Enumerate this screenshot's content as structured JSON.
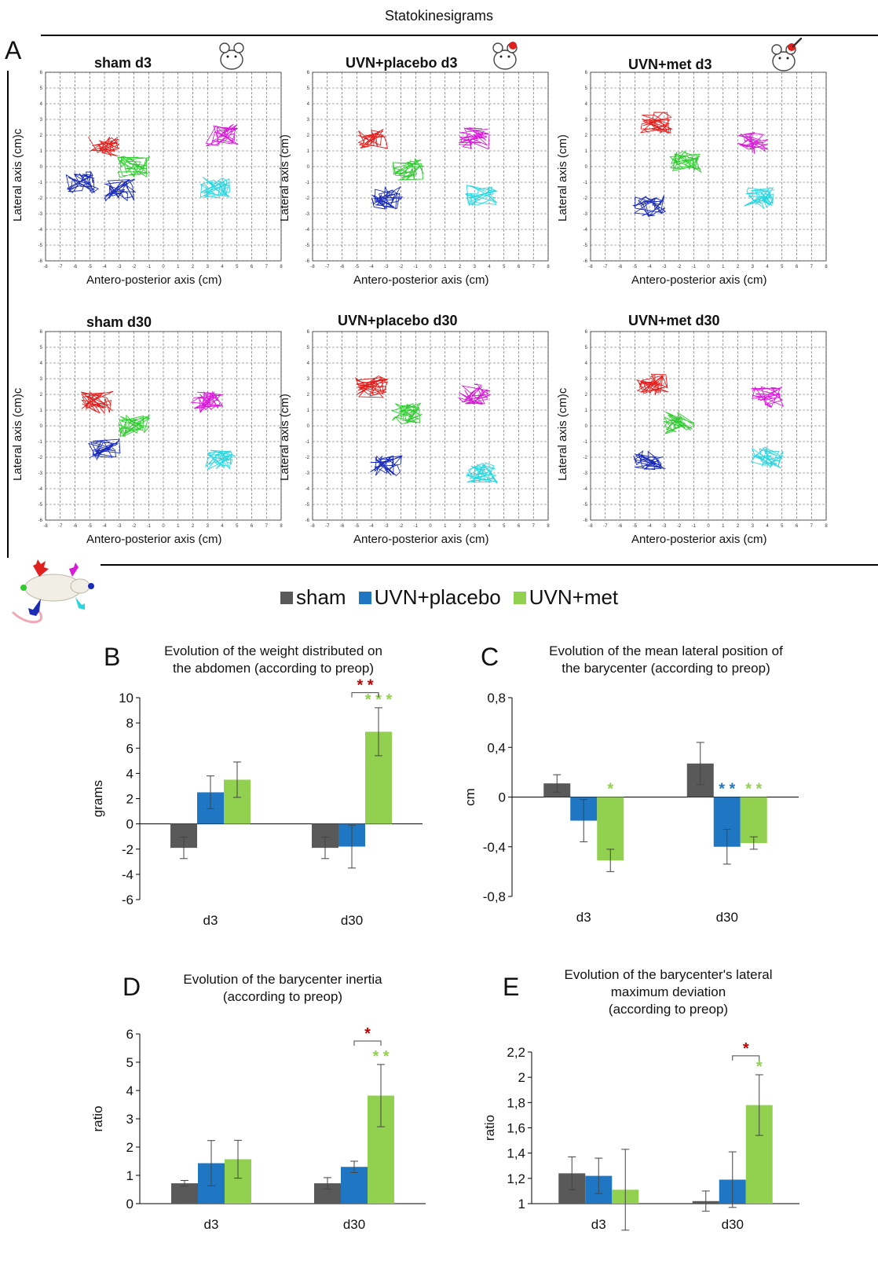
{
  "figure_title": "Statokinesigrams",
  "panel_letters": {
    "A": "A",
    "B": "B",
    "C": "C",
    "D": "D",
    "E": "E"
  },
  "colors": {
    "sham": "#595959",
    "placebo": "#1f77c4",
    "met": "#92d050",
    "sig_red": "#c00000",
    "paw_red": "#e0201e",
    "paw_green": "#2ecc2e",
    "paw_blue": "#1a2bb8",
    "paw_magenta": "#d81bd8",
    "paw_cyan": "#29d6e0"
  },
  "statokinesigrams": [
    {
      "title": "sham d3",
      "ylabel": "Lateral axis (cm)c",
      "xlabel": "Antero-posterior axis (cm)",
      "icon": "rat-icon"
    },
    {
      "title": "UVN+placebo d3",
      "ylabel": "Lateral axis (cm)",
      "xlabel": "Antero-posterior axis (cm)",
      "icon": "rat-lesion-icon"
    },
    {
      "title": "UVN+met d3",
      "ylabel": "Lateral axis (cm)",
      "xlabel": "Antero-posterior axis (cm)",
      "icon": "rat-syringe-icon"
    },
    {
      "title": "sham d30",
      "ylabel": "Lateral axis (cm)c",
      "xlabel": "Antero-posterior axis (cm)",
      "icon": ""
    },
    {
      "title": "UVN+placebo d30",
      "ylabel": "Lateral axis (cm)",
      "xlabel": "Antero-posterior axis (cm)",
      "icon": ""
    },
    {
      "title": "UVN+met d30",
      "ylabel": "Lateral axis (cm)c",
      "xlabel": "Antero-posterior axis (cm)",
      "icon": ""
    }
  ],
  "sk_axes": {
    "xticks": [
      -8,
      -7,
      -6,
      -5,
      -4,
      -3,
      -2,
      -1,
      0,
      1,
      2,
      3,
      4,
      5,
      6,
      7,
      8
    ],
    "yticks": [
      6,
      5,
      4,
      3,
      2,
      1,
      0,
      -1,
      -2,
      -3,
      -4,
      -5,
      -6
    ]
  },
  "legend": [
    {
      "label": "sham",
      "color": "#595959"
    },
    {
      "label": "UVN+placebo",
      "color": "#1f77c4"
    },
    {
      "label": "UVN+met",
      "color": "#92d050"
    }
  ],
  "chart_data": [
    {
      "id": "B",
      "type": "bar",
      "title": "Evolution of the weight distributed on the abdomen (according to preop)",
      "title_lines": [
        "Evolution of the weight distributed on",
        "the abdomen (according to preop)"
      ],
      "ylabel": "grams",
      "ylim": [
        -6,
        10
      ],
      "yticks": [
        {
          "v": 10,
          "t": "10"
        },
        {
          "v": 8,
          "t": "8"
        },
        {
          "v": 6,
          "t": "6"
        },
        {
          "v": 4,
          "t": "4"
        },
        {
          "v": 2,
          "t": "2"
        },
        {
          "v": 0,
          "t": "0"
        },
        {
          "v": -2,
          "t": "-2"
        },
        {
          "v": -4,
          "t": "-4"
        },
        {
          "v": -6,
          "t": "-6"
        }
      ],
      "categories": [
        "d3",
        "d30"
      ],
      "series": [
        {
          "name": "sham",
          "values": [
            -1.9,
            -1.9
          ],
          "errors": [
            0.85,
            0.85
          ]
        },
        {
          "name": "UVN+placebo",
          "values": [
            2.5,
            -1.8
          ],
          "errors": [
            1.3,
            1.7
          ]
        },
        {
          "name": "UVN+met",
          "values": [
            3.5,
            7.3
          ],
          "errors": [
            1.4,
            1.9
          ]
        }
      ],
      "stars": [
        {
          "cat": 1,
          "series": 2,
          "text": "* * *",
          "color": "#92d050"
        }
      ],
      "brackets": [
        {
          "cat": 1,
          "from": 1,
          "to": 2,
          "y": 10.4,
          "text": "* *",
          "color": "#c00000"
        }
      ]
    },
    {
      "id": "C",
      "type": "bar",
      "title": "Evolution of the mean lateral position of the barycenter (according to preop)",
      "title_lines": [
        "Evolution of the mean lateral position of",
        "the barycenter (according to preop)"
      ],
      "ylabel": "cm",
      "ylim": [
        -0.8,
        0.8
      ],
      "yticks": [
        {
          "v": 0.8,
          "t": "0,8"
        },
        {
          "v": 0.4,
          "t": "0,4"
        },
        {
          "v": 0,
          "t": "0"
        },
        {
          "v": -0.4,
          "t": "-0,4"
        },
        {
          "v": -0.8,
          "t": "-0,8"
        }
      ],
      "categories": [
        "d3",
        "d30"
      ],
      "series": [
        {
          "name": "sham",
          "values": [
            0.11,
            0.27
          ],
          "errors": [
            0.07,
            0.17
          ]
        },
        {
          "name": "UVN+placebo",
          "values": [
            -0.19,
            -0.4
          ],
          "errors": [
            0.17,
            0.14
          ]
        },
        {
          "name": "UVN+met",
          "values": [
            -0.51,
            -0.37
          ],
          "errors": [
            0.09,
            0.05
          ]
        }
      ],
      "stars": [
        {
          "cat": 0,
          "series": 2,
          "text": "*",
          "color": "#92d050",
          "above_zero": true
        },
        {
          "cat": 1,
          "series": 1,
          "text": "* *",
          "color": "#1f77c4",
          "above_zero": true
        },
        {
          "cat": 1,
          "series": 2,
          "text": "* *",
          "color": "#92d050",
          "above_zero": true
        }
      ],
      "brackets": []
    },
    {
      "id": "D",
      "type": "bar",
      "title": "Evolution of the barycenter inertia (according to preop)",
      "title_lines": [
        "Evolution of the barycenter inertia",
        "(according to preop)"
      ],
      "ylabel": "ratio",
      "ylim": [
        0,
        6
      ],
      "yticks": [
        {
          "v": 6,
          "t": "6"
        },
        {
          "v": 5,
          "t": "5"
        },
        {
          "v": 4,
          "t": "4"
        },
        {
          "v": 3,
          "t": "3"
        },
        {
          "v": 2,
          "t": "2"
        },
        {
          "v": 1,
          "t": "1"
        },
        {
          "v": 0,
          "t": "0"
        }
      ],
      "categories": [
        "d3",
        "d30"
      ],
      "series": [
        {
          "name": "sham",
          "values": [
            0.72,
            0.72
          ],
          "errors": [
            0.1,
            0.2
          ]
        },
        {
          "name": "UVN+placebo",
          "values": [
            1.43,
            1.3
          ],
          "errors": [
            0.8,
            0.2
          ]
        },
        {
          "name": "UVN+met",
          "values": [
            1.57,
            3.82
          ],
          "errors": [
            0.67,
            1.1
          ]
        }
      ],
      "stars": [
        {
          "cat": 1,
          "series": 2,
          "text": "* *",
          "color": "#92d050"
        }
      ],
      "brackets": [
        {
          "cat": 1,
          "from": 1,
          "to": 2,
          "y": 5.75,
          "text": "*",
          "color": "#c00000"
        }
      ]
    },
    {
      "id": "E",
      "type": "bar",
      "title": "Evolution of the barycenter's lateral maximum deviation (according to preop)",
      "title_lines": [
        "Evolution of the barycenter's lateral",
        "maximum deviation",
        "(according to preop)"
      ],
      "ylabel": "ratio",
      "ylim": [
        1,
        2.2
      ],
      "yticks": [
        {
          "v": 2.2,
          "t": "2,2"
        },
        {
          "v": 2,
          "t": "2"
        },
        {
          "v": 1.8,
          "t": "1,8"
        },
        {
          "v": 1.6,
          "t": "1,6"
        },
        {
          "v": 1.4,
          "t": "1,4"
        },
        {
          "v": 1.2,
          "t": "1,2"
        },
        {
          "v": 1,
          "t": "1"
        }
      ],
      "categories": [
        "d3",
        "d30"
      ],
      "series": [
        {
          "name": "sham",
          "values": [
            1.24,
            1.02
          ],
          "errors": [
            0.13,
            0.08
          ]
        },
        {
          "name": "UVN+placebo",
          "values": [
            1.22,
            1.19
          ],
          "errors": [
            0.14,
            0.22
          ]
        },
        {
          "name": "UVN+met",
          "values": [
            1.11,
            1.78
          ],
          "errors": [
            0.32,
            0.24
          ]
        }
      ],
      "stars": [
        {
          "cat": 1,
          "series": 2,
          "text": "*",
          "color": "#92d050"
        }
      ],
      "brackets": [
        {
          "cat": 1,
          "from": 1,
          "to": 2,
          "y": 2.17,
          "text": "*",
          "color": "#c00000"
        }
      ]
    }
  ]
}
